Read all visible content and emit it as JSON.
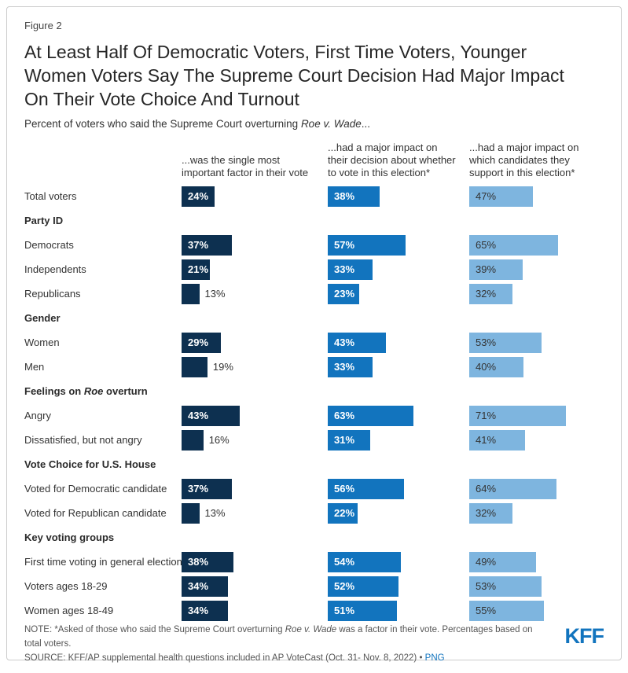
{
  "figure_label": "Figure 2",
  "title": "At Least Half Of Democratic Voters, First Time Voters, Younger Women Voters Say The Supreme Court Decision Had Major Impact On Their Vote Choice And Turnout",
  "subtitle": {
    "prefix": "Percent of voters who said the Supreme Court overturning ",
    "italic": "Roe v. Wade",
    "suffix": "..."
  },
  "chart_data": {
    "type": "bar",
    "orientation": "horizontal",
    "unit": "%",
    "value_range": [
      0,
      100
    ],
    "inside_label_min_value": 20,
    "columns": [
      {
        "header": "...was the single most important factor in their vote",
        "color": "#0d3050",
        "label_inside_color": "#ffffff"
      },
      {
        "header": "...had a major impact on their decision about whether to vote in this election*",
        "color": "#1274be",
        "label_inside_color": "#ffffff"
      },
      {
        "header": "...had a major impact on which candidates they support in this election*",
        "color": "#7eb5df",
        "label_inside_color": "#333333"
      }
    ],
    "rows": [
      {
        "kind": "data",
        "label": "Total voters",
        "values": [
          24,
          38,
          47
        ]
      },
      {
        "kind": "section",
        "label": "Party ID"
      },
      {
        "kind": "data",
        "label": "Democrats",
        "values": [
          37,
          57,
          65
        ]
      },
      {
        "kind": "data",
        "label": "Independents",
        "values": [
          21,
          33,
          39
        ]
      },
      {
        "kind": "data",
        "label": "Republicans",
        "values": [
          13,
          23,
          32
        ]
      },
      {
        "kind": "section",
        "label": "Gender"
      },
      {
        "kind": "data",
        "label": "Women",
        "values": [
          29,
          43,
          53
        ]
      },
      {
        "kind": "data",
        "label": "Men",
        "values": [
          19,
          33,
          40
        ]
      },
      {
        "kind": "section",
        "label": "Feelings on Roe overturn",
        "label_parts": {
          "prefix": "Feelings on ",
          "italic": "Roe",
          "suffix": " overturn"
        }
      },
      {
        "kind": "data",
        "label": "Angry",
        "values": [
          43,
          63,
          71
        ]
      },
      {
        "kind": "data",
        "label": "Dissatisfied, but not angry",
        "values": [
          16,
          31,
          41
        ]
      },
      {
        "kind": "section",
        "label": "Vote Choice for U.S. House"
      },
      {
        "kind": "data",
        "label": "Voted for Democratic candidate",
        "values": [
          37,
          56,
          64
        ]
      },
      {
        "kind": "data",
        "label": "Voted for Republican candidate",
        "values": [
          13,
          22,
          32
        ]
      },
      {
        "kind": "section",
        "label": "Key voting groups"
      },
      {
        "kind": "data",
        "label": "First time voting in general election",
        "values": [
          38,
          54,
          49
        ]
      },
      {
        "kind": "data",
        "label": "Voters ages 18-29",
        "values": [
          34,
          52,
          53
        ]
      },
      {
        "kind": "data",
        "label": "Women ages 18-49",
        "values": [
          34,
          51,
          55
        ]
      }
    ]
  },
  "footer": {
    "note": {
      "prefix": "NOTE: *Asked of those who said the Supreme Court overturning ",
      "italic": "Roe v. Wade",
      "suffix": " was a factor in their vote. Percentages based on total voters."
    },
    "source_text": "SOURCE: KFF/AP supplemental health questions included in AP VoteCast (Oct. 31- Nov. 8, 2022)",
    "source_separator": "•",
    "source_link": "PNG",
    "logo": "KFF"
  },
  "colors": {
    "bar_dark_navy": "#0d3050",
    "bar_medium_blue": "#1274be",
    "bar_light_blue": "#7eb5df",
    "link": "#1274be",
    "logo": "#1274be",
    "card_border": "#cccccc"
  }
}
